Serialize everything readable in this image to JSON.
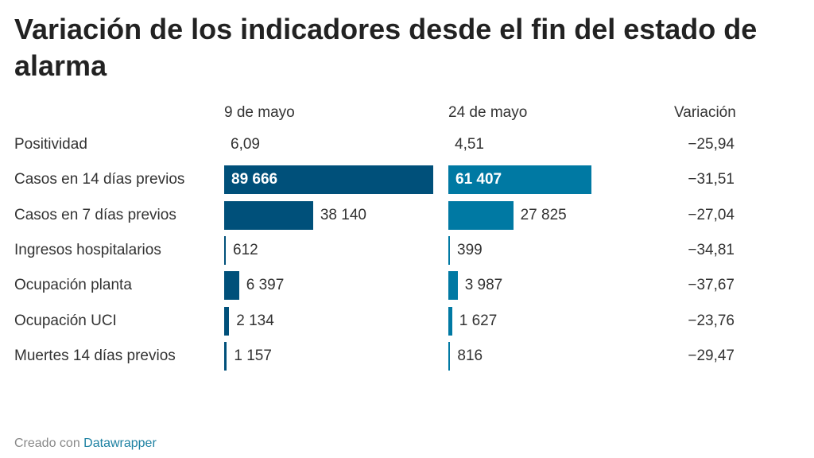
{
  "title": "Variación de los indicadores desde el fin del estado de alarma",
  "footer": {
    "prefix": "Creado con",
    "link": "Datawrapper"
  },
  "chart_data": {
    "type": "table",
    "columns": [
      "",
      "9 de mayo",
      "24 de mayo",
      "Variación"
    ],
    "colors": {
      "9 de mayo": "#00507a",
      "24 de mayo": "#0079a3"
    },
    "rows": [
      {
        "label": "Positividad",
        "may9": 6.09,
        "may24": 4.51,
        "may9_text": "6,09",
        "may24_text": "4,51",
        "variation": "−25,94",
        "bar": false
      },
      {
        "label": "Casos en 14 días previos",
        "may9": 89666,
        "may24": 61407,
        "may9_text": "89 666",
        "may24_text": "61 407",
        "variation": "−31,51",
        "bar": true
      },
      {
        "label": "Casos en 7 días previos",
        "may9": 38140,
        "may24": 27825,
        "may9_text": "38 140",
        "may24_text": "27 825",
        "variation": "−27,04",
        "bar": true
      },
      {
        "label": "Ingresos hospitalarios",
        "may9": 612,
        "may24": 399,
        "may9_text": "612",
        "may24_text": "399",
        "variation": "−34,81",
        "bar": true
      },
      {
        "label": "Ocupación planta",
        "may9": 6397,
        "may24": 3987,
        "may9_text": "6 397",
        "may24_text": "3 987",
        "variation": "−37,67",
        "bar": true
      },
      {
        "label": "Ocupación UCI",
        "may9": 2134,
        "may24": 1627,
        "may9_text": "2 134",
        "may24_text": "1 627",
        "variation": "−23,76",
        "bar": true
      },
      {
        "label": "Muertes 14 días previos",
        "may9": 1157,
        "may24": 816,
        "may9_text": "1 157",
        "may24_text": "816",
        "variation": "−29,47",
        "bar": true
      }
    ]
  }
}
